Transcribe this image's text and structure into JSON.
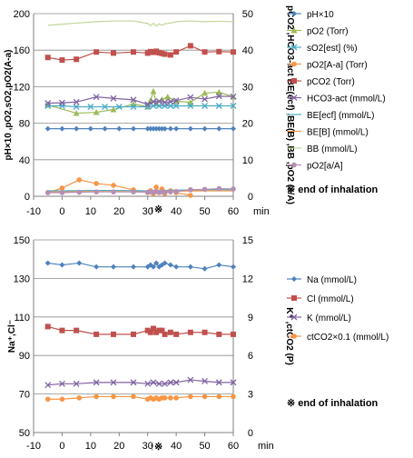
{
  "chart_data": [
    {
      "type": "line",
      "title": "",
      "xlabel": "min",
      "ylabel_left": "pH×10 ,pO2,sO2,pO2(A-a)",
      "ylabel_right": "pCO2 ,HCO3-act BE(ecf) ,BE(B) ,BB ,pO2 (a/A)",
      "xlim": [
        -10,
        60
      ],
      "ylim_left": [
        0,
        200
      ],
      "ylim_right": [
        0,
        50
      ],
      "x_ticks": [
        -10,
        0,
        10,
        20,
        30,
        40,
        50,
        60
      ],
      "y_ticks_left": [
        0,
        40,
        80,
        120,
        160,
        200
      ],
      "y_ticks_right": [
        0,
        10,
        20,
        30,
        40,
        50
      ],
      "grid": "horizontal",
      "legend_position": "right",
      "annotation_symbol": "↑※",
      "annotation_x": 31,
      "legend_note": "※ end of inhalation",
      "series": [
        {
          "name": "pH×10",
          "axis": "left",
          "color": "#4f81bd",
          "marker": "diamond",
          "x": [
            -5,
            0,
            5,
            10,
            15,
            20,
            25,
            30,
            31,
            32,
            33,
            34,
            35,
            36,
            38,
            40,
            45,
            50,
            55,
            60
          ],
          "values": [
            74,
            74,
            74,
            74,
            74,
            74,
            74,
            74,
            74,
            74,
            74,
            74,
            74,
            74,
            74,
            74,
            74,
            74,
            74,
            74
          ]
        },
        {
          "name": "pO2 (Torr)",
          "axis": "left",
          "color": "#9bbb59",
          "marker": "triangle",
          "x": [
            -5,
            5,
            12,
            18,
            25,
            30,
            31,
            32,
            33,
            35,
            37,
            40,
            45,
            50,
            55,
            60
          ],
          "values": [
            100,
            91,
            92,
            95,
            101,
            98,
            105,
            115,
            102,
            106,
            109,
            104,
            103,
            113,
            114,
            109
          ]
        },
        {
          "name": "sO2[est] (%)",
          "axis": "left",
          "color": "#4bacc6",
          "marker": "x",
          "x": [
            -5,
            0,
            5,
            10,
            15,
            20,
            25,
            30,
            32,
            34,
            36,
            38,
            40,
            45,
            50,
            55,
            60
          ],
          "values": [
            99,
            99,
            98,
            98,
            98,
            98,
            98,
            98,
            99,
            99,
            99,
            99,
            99,
            99,
            99,
            99,
            99
          ]
        },
        {
          "name": "pO2[A-a] (Torr)",
          "axis": "left",
          "color": "#f79646",
          "marker": "circle",
          "x": [
            -5,
            0,
            6,
            12,
            18,
            25,
            30,
            31,
            32,
            33,
            34,
            35,
            36,
            38,
            40,
            45
          ],
          "values": [
            4,
            9,
            18,
            14,
            12,
            7,
            4,
            6,
            3,
            10,
            4,
            8,
            3,
            6,
            4,
            1
          ]
        },
        {
          "name": "pCO2 (Torr)",
          "axis": "right",
          "color": "#c0504d",
          "marker": "square",
          "x": [
            -5,
            0,
            5,
            12,
            18,
            25,
            30,
            31,
            32,
            33,
            34,
            35,
            36,
            38,
            40,
            45,
            50,
            55,
            60
          ],
          "values": [
            38,
            37.3,
            37.5,
            39.5,
            39.2,
            39.5,
            39.2,
            39.6,
            39.4,
            39.7,
            39.3,
            39.1,
            38.9,
            38.7,
            39.5,
            41.2,
            39.5,
            39.6,
            39.5
          ]
        },
        {
          "name": "HCO3-act (mmol/L)",
          "axis": "right",
          "color": "#8064a2",
          "marker": "x",
          "x": [
            -5,
            0,
            5,
            12,
            18,
            25,
            30,
            32,
            34,
            36,
            38,
            40,
            45,
            50,
            55,
            60
          ],
          "values": [
            25.5,
            25.6,
            25.8,
            27.2,
            26.8,
            26.4,
            25.2,
            25.9,
            26,
            25.7,
            25.9,
            26.2,
            27.1,
            26.6,
            27.4,
            27.3
          ]
        },
        {
          "name": "BE[ecf] (mmol/L)",
          "axis": "right",
          "color": "#4bacc6",
          "marker": "none",
          "x": [
            -5,
            0,
            10,
            20,
            30,
            40,
            50,
            60
          ],
          "values": [
            1.5,
            1.5,
            1.6,
            1.6,
            1.5,
            1.7,
            1.8,
            1.8
          ]
        },
        {
          "name": "BE[B] (mmol/L)",
          "axis": "right",
          "color": "#f79646",
          "marker": "none",
          "x": [
            -5,
            0,
            10,
            20,
            30,
            40,
            50,
            60
          ],
          "values": [
            1.2,
            1.2,
            1.3,
            1.3,
            1.2,
            1.4,
            1.5,
            1.5
          ]
        },
        {
          "name": "BB (mmol/L)",
          "axis": "right",
          "color": "#c3d69b",
          "marker": "none",
          "x": [
            -5,
            0,
            5,
            12,
            18,
            25,
            30,
            31,
            32,
            33,
            34,
            35,
            36,
            38,
            40,
            45,
            50,
            55,
            60
          ],
          "values": [
            46.8,
            47.1,
            47.4,
            47.8,
            48,
            48,
            47.3,
            46.7,
            47.4,
            46.6,
            47.2,
            46.8,
            47.2,
            47.4,
            47.8,
            48,
            47.8,
            47.9,
            47.8
          ]
        },
        {
          "name": "pO2[a/A]",
          "axis": "right",
          "color": "#b48eb4",
          "marker": "circle",
          "x": [
            -5,
            0,
            6,
            12,
            18,
            25,
            30,
            31,
            32,
            33,
            34,
            35,
            36,
            38,
            40,
            45,
            50,
            55,
            60
          ],
          "values": [
            1,
            1,
            1.1,
            1.2,
            1.2,
            1.2,
            1.1,
            1.2,
            1.1,
            1.3,
            1.1,
            1.2,
            1.1,
            1.2,
            1.3,
            1.8,
            1.9,
            2.1,
            2
          ]
        }
      ]
    },
    {
      "type": "line",
      "title": "",
      "xlabel": "min",
      "ylabel_left": "Na⁺,Cl⁻",
      "ylabel_right": "K⁺ ,ctCO2 (P)",
      "xlim": [
        -10,
        60
      ],
      "ylim_left": [
        50,
        150
      ],
      "ylim_right": [
        0,
        15
      ],
      "x_ticks": [
        -10,
        0,
        10,
        20,
        30,
        40,
        50,
        60
      ],
      "y_ticks_left": [
        50,
        70,
        90,
        110,
        130,
        150
      ],
      "y_ticks_right": [
        0,
        3,
        6,
        9,
        12,
        15
      ],
      "grid": "horizontal",
      "legend_position": "right",
      "annotation_symbol": "↑※",
      "annotation_x": 31,
      "legend_note": "※ end of inhalation",
      "series": [
        {
          "name": "Na (mmol/L)",
          "axis": "left",
          "color": "#4f81bd",
          "marker": "diamond",
          "x": [
            -5,
            0,
            6,
            12,
            18,
            25,
            30,
            31,
            32,
            33,
            34,
            35,
            36,
            38,
            40,
            45,
            50,
            55,
            60
          ],
          "values": [
            138,
            137,
            138,
            136,
            136,
            136,
            136,
            137,
            136,
            138,
            136,
            137,
            138,
            137,
            136,
            136,
            135,
            137,
            136
          ]
        },
        {
          "name": "Cl (mmol/L)",
          "axis": "left",
          "color": "#c0504d",
          "marker": "square",
          "x": [
            -5,
            0,
            5,
            12,
            18,
            25,
            30,
            31,
            32,
            33,
            34,
            35,
            36,
            38,
            40,
            45,
            50,
            55,
            60
          ],
          "values": [
            105,
            103,
            103,
            101,
            101,
            101,
            103,
            102,
            104,
            102,
            103,
            103,
            101,
            102,
            101,
            102,
            102,
            101,
            101
          ]
        },
        {
          "name": "K (mmol/L)",
          "axis": "right",
          "color": "#8064a2",
          "marker": "x",
          "x": [
            -5,
            0,
            5,
            12,
            18,
            25,
            30,
            32,
            34,
            36,
            38,
            40,
            45,
            50,
            55,
            60
          ],
          "values": [
            3.7,
            3.8,
            3.8,
            3.9,
            3.9,
            3.9,
            3.8,
            3.9,
            3.8,
            3.8,
            3.9,
            3.9,
            4.1,
            4,
            3.9,
            3.9
          ]
        },
        {
          "name": "ctCO2×0.1 (mmol/L)",
          "axis": "right",
          "color": "#f79646",
          "marker": "circle",
          "x": [
            -5,
            0,
            6,
            12,
            18,
            25,
            30,
            31,
            32,
            33,
            34,
            35,
            36,
            38,
            40,
            45,
            50,
            55,
            60
          ],
          "values": [
            2.6,
            2.6,
            2.7,
            2.8,
            2.8,
            2.8,
            2.6,
            2.7,
            2.6,
            2.7,
            2.6,
            2.7,
            2.7,
            2.7,
            2.7,
            2.8,
            2.8,
            2.8,
            2.8
          ]
        }
      ]
    }
  ]
}
